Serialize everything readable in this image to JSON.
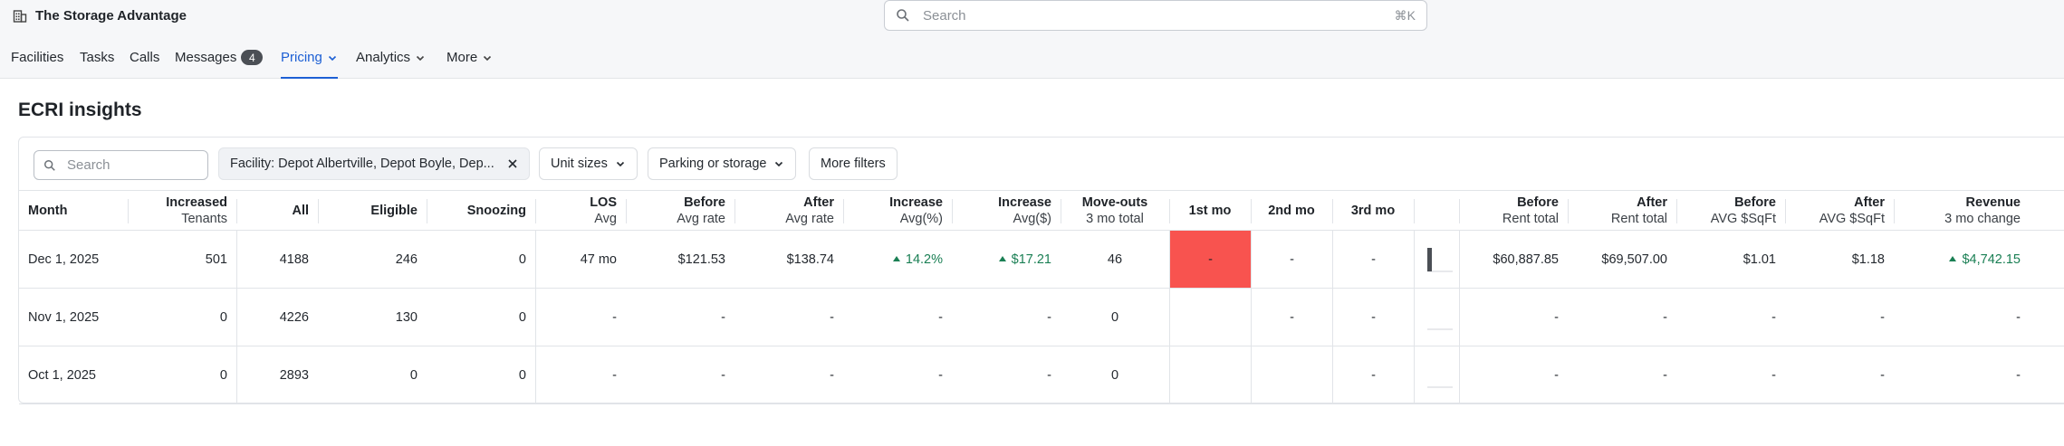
{
  "app": {
    "title": "The Storage Advantage"
  },
  "global_search": {
    "placeholder": "Search",
    "shortcut": "⌘K"
  },
  "nav": {
    "items": [
      {
        "label": "Facilities"
      },
      {
        "label": "Tasks"
      },
      {
        "label": "Calls"
      },
      {
        "label": "Messages",
        "badge": "4"
      },
      {
        "label": "Pricing",
        "active": true
      },
      {
        "label": "Analytics"
      },
      {
        "label": "More"
      }
    ]
  },
  "page": {
    "title": "ECRI insights"
  },
  "filters": {
    "search_placeholder": "Search",
    "facility_chip": "Facility: Depot Albertville, Depot Boyle, Dep...",
    "unit_sizes": "Unit sizes",
    "parking_or_storage": "Parking or storage",
    "more_filters": "More filters"
  },
  "table": {
    "headers": [
      {
        "t1": "Month",
        "t2": ""
      },
      {
        "t1": "Increased",
        "t2": "Tenants"
      },
      {
        "t1": "All",
        "t2": ""
      },
      {
        "t1": "Eligible",
        "t2": ""
      },
      {
        "t1": "Snoozing",
        "t2": ""
      },
      {
        "t1": "LOS",
        "t2": "Avg"
      },
      {
        "t1": "Before",
        "t2": "Avg rate"
      },
      {
        "t1": "After",
        "t2": "Avg rate"
      },
      {
        "t1": "Increase",
        "t2": "Avg(%)"
      },
      {
        "t1": "Increase",
        "t2": "Avg($)"
      },
      {
        "t1": "Move-outs",
        "t2": "3 mo total"
      },
      {
        "t1": "1st mo",
        "t2": ""
      },
      {
        "t1": "2nd mo",
        "t2": ""
      },
      {
        "t1": "3rd mo",
        "t2": ""
      },
      {
        "t1": "",
        "t2": ""
      },
      {
        "t1": "Before",
        "t2": "Rent total"
      },
      {
        "t1": "After",
        "t2": "Rent total"
      },
      {
        "t1": "Before",
        "t2": "AVG $SqFt"
      },
      {
        "t1": "After",
        "t2": "AVG $SqFt"
      },
      {
        "t1": "Revenue",
        "t2": "3 mo change"
      }
    ],
    "rows": [
      {
        "month": "Dec 1, 2025",
        "increased": "501",
        "all": "4188",
        "eligible": "246",
        "snoozing": "0",
        "los": "47 mo",
        "before_rate": "$121.53",
        "after_rate": "$138.74",
        "inc_pct": "14.2%",
        "inc_usd": "$17.21",
        "moveouts": "46",
        "m1": "-",
        "m2": "-",
        "m3": "-",
        "spark_level": 1.0,
        "before_rent": "$60,887.85",
        "after_rent": "$69,507.00",
        "before_sqft": "$1.01",
        "after_sqft": "$1.18",
        "revenue": "$4,742.15"
      },
      {
        "month": "Nov 1, 2025",
        "increased": "0",
        "all": "4226",
        "eligible": "130",
        "snoozing": "0",
        "los": "-",
        "before_rate": "-",
        "after_rate": "-",
        "inc_pct": "-",
        "inc_usd": "-",
        "moveouts": "0",
        "m1": "",
        "m2": "-",
        "m3": "-",
        "spark_level": 0.0,
        "before_rent": "-",
        "after_rent": "-",
        "before_sqft": "-",
        "after_sqft": "-",
        "revenue": "-"
      },
      {
        "month": "Oct 1, 2025",
        "increased": "0",
        "all": "2893",
        "eligible": "0",
        "snoozing": "0",
        "los": "-",
        "before_rate": "-",
        "after_rate": "-",
        "inc_pct": "-",
        "inc_usd": "-",
        "moveouts": "0",
        "m1": "",
        "m2": "",
        "m3": "-",
        "spark_level": 0.0,
        "before_rent": "-",
        "after_rent": "-",
        "before_sqft": "-",
        "after_sqft": "-",
        "revenue": "-"
      }
    ]
  },
  "colors": {
    "accent": "#1c5fd4",
    "positive": "#1a7f54",
    "heat_high": "#f8534f"
  },
  "icons": {
    "brand": "building-icon",
    "search": "search-icon",
    "chevron": "chevron-down-icon",
    "close": "close-icon"
  }
}
